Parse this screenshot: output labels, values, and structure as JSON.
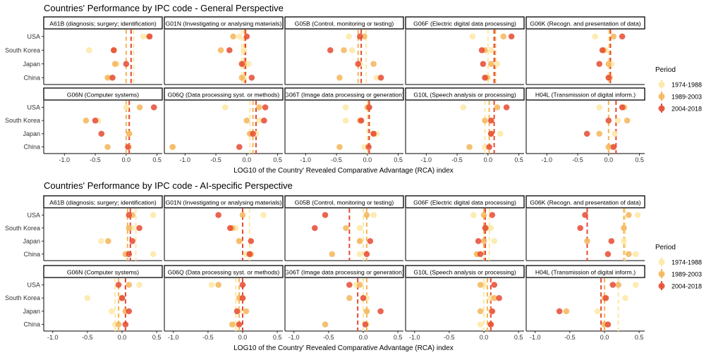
{
  "chart_data": [
    {
      "type": "scatter",
      "title": "Countries' Performance by IPC code - General Perspective",
      "xlabel": "LOG10 of the Country' Revealed Comparative Advantage (RCA) index",
      "ylabel": "",
      "countries": [
        "USA",
        "South Korea",
        "Japan",
        "China"
      ],
      "periods": [
        "1974-1988",
        "1989-2003",
        "2004-2018"
      ],
      "series_colors": {
        "1974-1988": "#fde8a4",
        "1989-2003": "#f5b55a",
        "2004-2018": "#e64a32"
      },
      "xlim": [
        -1.3,
        0.55
      ],
      "xticks": [
        "-1.0",
        "-0.5",
        "0.0",
        "0.5"
      ],
      "legend": {
        "title": "Period",
        "position": "right"
      },
      "panels": [
        {
          "label": "A61B (diagnosis; surgery; identification)",
          "vlines": [
            0.12,
            0.0,
            0.08
          ],
          "values": {
            "USA": [
              0.28,
              0.37,
              0.38
            ],
            "South Korea": [
              -0.6,
              -0.2,
              -0.2
            ],
            "Japan": [
              -0.15,
              -0.18,
              0.0
            ],
            "China": [
              -0.25,
              -0.3,
              -0.22
            ]
          }
        },
        {
          "label": "G01N (Investigating or analysing materials)",
          "vlines": [
            -0.08,
            -0.04,
            -0.02
          ],
          "values": {
            "USA": [
              -0.12,
              -0.22,
              0.0
            ],
            "South Korea": [
              -0.05,
              -0.42,
              -0.28
            ],
            "Japan": [
              0.03,
              -0.05,
              -0.08
            ],
            "China": [
              -0.05,
              -0.08,
              0.08
            ]
          }
        },
        {
          "label": "G05B (Control, monitoring or testing)",
          "vlines": [
            -0.02,
            -0.15,
            -0.1
          ],
          "values": {
            "USA": [
              -0.3,
              -0.05,
              -0.12
            ],
            "South Korea": [
              -0.25,
              -0.38,
              -0.6
            ],
            "Japan": [
              -0.12,
              0.1,
              -0.15
            ],
            "China": [
              0.15,
              -0.45,
              0.22
            ]
          }
        },
        {
          "label": "G06F (Electric digital data processing)",
          "vlines": [
            0.0,
            0.12,
            0.1
          ],
          "values": {
            "USA": [
              -0.25,
              0.25,
              0.38
            ],
            "South Korea": [
              0.05,
              -0.05,
              -0.1
            ],
            "Japan": [
              0.15,
              0.05,
              -0.08
            ],
            "China": [
              0.0,
              -0.02,
              -0.05
            ]
          }
        },
        {
          "label": "G06K (Recogn. and presentation of data)",
          "vlines": [
            0.0,
            0.02,
            0.03
          ],
          "values": {
            "USA": [
              -0.22,
              0.08,
              0.22
            ],
            "South Korea": [
              -0.05,
              -0.08,
              -0.1
            ],
            "Japan": [
              0.05,
              0.0,
              -0.15
            ],
            "China": [
              0.0,
              0.02,
              0.0
            ]
          }
        },
        {
          "label": "G06N (Computer systems)",
          "vlines": [
            0.05,
            0.0,
            0.05
          ],
          "values": {
            "USA": [
              0.0,
              0.22,
              0.45
            ],
            "South Korea": [
              -0.45,
              -0.65,
              -0.5
            ],
            "Japan": [
              0.05,
              0.05,
              -0.4
            ],
            "China": [
              0.05,
              -0.3,
              0.03
            ]
          }
        },
        {
          "label": "G06Q (Data processing syst. or methods)",
          "vlines": [
            0.05,
            0.1,
            0.15
          ],
          "values": {
            "USA": [
              -0.35,
              0.2,
              0.3
            ],
            "South Korea": [
              0.2,
              0.0,
              0.28
            ],
            "Japan": [
              0.15,
              0.05,
              0.1
            ],
            "China": [
              -1.2,
              -1.2,
              -0.12
            ]
          }
        },
        {
          "label": "G06T (Image data processing or generation)",
          "vlines": [
            0.0,
            0.02,
            0.03
          ],
          "values": {
            "USA": [
              -0.35,
              0.0,
              0.03
            ],
            "South Korea": [
              -0.35,
              -0.12,
              -0.1
            ],
            "Japan": [
              0.15,
              0.1,
              0.1
            ],
            "China": [
              -0.05,
              -0.45,
              0.02
            ]
          }
        },
        {
          "label": "G10L (Speech analysis or processing)",
          "vlines": [
            -0.05,
            0.02,
            0.1
          ],
          "values": {
            "USA": [
              -0.4,
              0.15,
              0.3
            ],
            "South Korea": [
              0.05,
              -0.05,
              0.05
            ],
            "Japan": [
              0.2,
              0.05,
              0.05
            ],
            "China": [
              -0.05,
              -0.3,
              0.02
            ]
          }
        },
        {
          "label": "H04L (Transmission of digital inform.)",
          "vlines": [
            0.0,
            0.0,
            0.12
          ],
          "values": {
            "USA": [
              -0.15,
              0.25,
              0.22
            ],
            "South Korea": [
              0.15,
              0.3,
              0.0
            ],
            "Japan": [
              0.1,
              -0.15,
              -0.35
            ],
            "China": [
              0.05,
              0.0,
              0.08
            ]
          }
        }
      ]
    },
    {
      "type": "scatter",
      "title": "Countries' Performance by IPC code - AI-specific Perspective",
      "xlabel": "LOG10 of the Country' Revealed Comparative Advantage (RCA) index",
      "ylabel": "",
      "countries": [
        "USA",
        "South Korea",
        "Japan",
        "China"
      ],
      "periods": [
        "1974-1988",
        "1989-2003",
        "2004-2018"
      ],
      "series_colors": {
        "1974-1988": "#fde8a4",
        "1989-2003": "#f5b55a",
        "2004-2018": "#e64a32"
      },
      "xlim": [
        -1.1,
        0.55
      ],
      "xticks": [
        "-1.0",
        "-0.5",
        "0.0",
        "0.5"
      ],
      "legend": {
        "title": "Period",
        "position": "right"
      },
      "panels": [
        {
          "label": "A61B (diagnosis; surgery; identification)",
          "vlines": [
            0.2,
            0.08,
            0.12
          ],
          "values": {
            "USA": [
              0.45,
              0.15,
              0.1
            ],
            "South Korea": [
              0.15,
              0.1,
              0.25
            ],
            "Japan": [
              -0.3,
              -0.2,
              0.15
            ],
            "China": [
              0.45,
              0.05,
              0.1
            ]
          }
        },
        {
          "label": "G01N (Investigating or analysing materials)",
          "vlines": [
            0.1,
            0.0,
            0.0
          ],
          "values": {
            "USA": [
              0.3,
              0.0,
              -0.35
            ],
            "South Korea": [
              -0.1,
              -0.15,
              -0.18
            ],
            "Japan": [
              -0.05,
              -0.05,
              0.12
            ],
            "China": [
              0.05,
              0.12,
              0.1
            ]
          }
        },
        {
          "label": "G05B (Control, monitoring or testing)",
          "vlines": [
            0.0,
            0.05,
            -0.2
          ],
          "values": {
            "USA": [
              0.15,
              0.05,
              -0.55
            ],
            "South Korea": [
              -0.05,
              -0.25,
              -0.7
            ],
            "Japan": [
              -0.05,
              -0.05,
              0.1
            ],
            "China": [
              -0.05,
              -0.45,
              0.05
            ]
          }
        },
        {
          "label": "G06F (Electric digital data processing)",
          "vlines": [
            0.08,
            0.0,
            0.02
          ],
          "values": {
            "USA": [
              -0.15,
              0.0,
              0.12
            ],
            "South Korea": [
              0.1,
              0.03,
              0.02
            ],
            "Japan": [
              0.15,
              0.0,
              -0.08
            ],
            "China": [
              -0.1,
              -0.1,
              -0.05
            ]
          }
        },
        {
          "label": "G06K (Recogn. and presentation of data)",
          "vlines": [
            0.3,
            0.28,
            -0.25
          ],
          "values": {
            "USA": [
              0.48,
              0.35,
              -0.28
            ],
            "South Korea": [
              0.28,
              0.28,
              -0.35
            ],
            "Japan": [
              0.28,
              -0.25,
              0.1
            ],
            "China": [
              0.45,
              0.35,
              0.05
            ]
          }
        },
        {
          "label": "G06N (Computer systems)",
          "vlines": [
            -0.1,
            -0.05,
            0.05
          ],
          "values": {
            "USA": [
              0.25,
              0.1,
              -0.05
            ],
            "South Korea": [
              -0.5,
              0.0,
              0.0
            ],
            "Japan": [
              -0.15,
              0.05,
              0.1
            ],
            "China": [
              -0.1,
              -0.05,
              0.05
            ]
          }
        },
        {
          "label": "G06Q (Data processing syst. or methods)",
          "vlines": [
            -0.1,
            -0.05,
            0.0
          ],
          "values": {
            "USA": [
              -0.45,
              -0.35,
              0.0
            ],
            "South Korea": [
              0.0,
              -0.05,
              0.0
            ],
            "Japan": [
              -0.05,
              0.05,
              -0.08
            ],
            "China": [
              -0.1,
              -0.15,
              -0.05
            ]
          }
        },
        {
          "label": "G06T (Image data processing or generation)",
          "vlines": [
            0.0,
            0.05,
            -0.08
          ],
          "values": {
            "USA": [
              -0.1,
              -0.05,
              -0.2
            ],
            "South Korea": [
              0.05,
              -0.2,
              0.0
            ],
            "Japan": [
              0.05,
              0.05,
              0.25
            ],
            "China": [
              0.05,
              -0.55,
              0.03
            ]
          }
        },
        {
          "label": "G10L (Speech analysis or processing)",
          "vlines": [
            0.0,
            0.05,
            0.1
          ],
          "values": {
            "USA": [
              0.0,
              -0.05,
              0.15
            ],
            "South Korea": [
              0.1,
              0.15,
              0.22
            ],
            "Japan": [
              0.1,
              -0.05,
              0.12
            ],
            "China": [
              -0.05,
              0.1,
              0.1
            ]
          }
        },
        {
          "label": "H04L (Transmission of digital inform.)",
          "vlines": [
            0.2,
            0.0,
            -0.05
          ],
          "values": {
            "USA": [
              0.45,
              0.2,
              0.12
            ],
            "South Korea": [
              0.3,
              0.0,
              0.02
            ],
            "Japan": [
              -0.1,
              -0.55,
              -0.65
            ],
            "China": [
              0.0,
              0.0,
              0.05
            ]
          }
        }
      ]
    }
  ]
}
